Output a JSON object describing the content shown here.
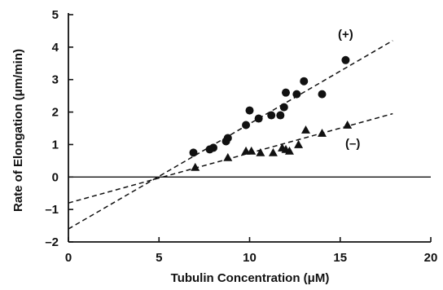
{
  "chart_data": {
    "type": "scatter",
    "title": "",
    "xlabel": "Tubulin Concentration (μM)",
    "ylabel": "Rate of Elongation (μm/min)",
    "xlim": [
      0,
      20
    ],
    "ylim": [
      -2,
      5
    ],
    "xticks": [
      0,
      5,
      10,
      15,
      20
    ],
    "yticks": [
      -2,
      -1,
      0,
      1,
      2,
      3,
      4,
      5
    ],
    "grid": false,
    "zero_line": true,
    "series": [
      {
        "name": "(+)",
        "marker": "circle",
        "points": [
          [
            6.9,
            0.75
          ],
          [
            7.8,
            0.85
          ],
          [
            8.0,
            0.9
          ],
          [
            8.7,
            1.1
          ],
          [
            8.8,
            1.2
          ],
          [
            9.8,
            1.6
          ],
          [
            10.0,
            2.05
          ],
          [
            10.5,
            1.8
          ],
          [
            11.2,
            1.9
          ],
          [
            11.7,
            1.9
          ],
          [
            11.9,
            2.15
          ],
          [
            12.0,
            2.6
          ],
          [
            12.6,
            2.55
          ],
          [
            13.0,
            2.95
          ],
          [
            14.0,
            2.55
          ],
          [
            15.3,
            3.6
          ]
        ],
        "fit": {
          "x": [
            0,
            17.9
          ],
          "y": [
            -1.6,
            4.2
          ]
        }
      },
      {
        "name": "(–)",
        "marker": "triangle",
        "points": [
          [
            7.0,
            0.3
          ],
          [
            8.8,
            0.6
          ],
          [
            9.8,
            0.8
          ],
          [
            10.1,
            0.8
          ],
          [
            10.6,
            0.75
          ],
          [
            11.3,
            0.75
          ],
          [
            11.8,
            0.9
          ],
          [
            12.0,
            0.85
          ],
          [
            12.2,
            0.8
          ],
          [
            12.7,
            1.0
          ],
          [
            13.1,
            1.45
          ],
          [
            14.0,
            1.35
          ],
          [
            15.4,
            1.6
          ]
        ],
        "fit": {
          "x": [
            0,
            17.9
          ],
          "y": [
            -0.8,
            1.95
          ]
        }
      }
    ]
  }
}
